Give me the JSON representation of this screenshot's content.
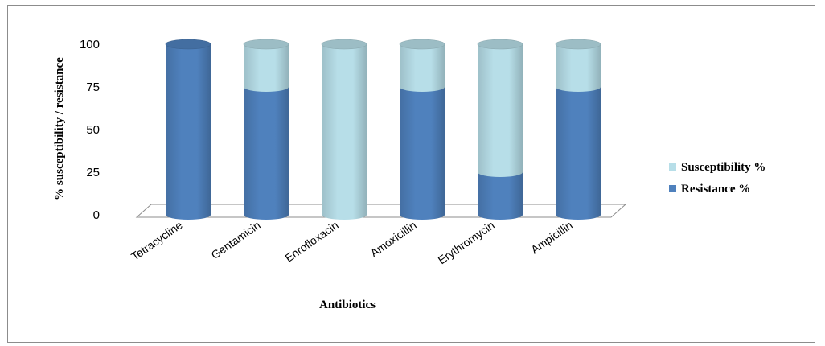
{
  "chart_data": {
    "type": "bar",
    "stacked": true,
    "three_d": true,
    "categories": [
      "Tetracycline",
      "Gentamicin",
      "Enrofloxacin",
      "Amoxicillin",
      "Erythromycin",
      "Ampicillin"
    ],
    "series": [
      {
        "name": "Resistance %",
        "values": [
          100,
          75,
          0,
          75,
          25,
          75
        ],
        "color": "#4f81bd"
      },
      {
        "name": "Susceptibility %",
        "values": [
          0,
          25,
          100,
          25,
          75,
          25
        ],
        "color": "#b7dee8"
      }
    ],
    "xlabel": "Antibiotics",
    "ylabel": "% susceptibility / resistance",
    "yticks": [
      0,
      25,
      50,
      75,
      100
    ],
    "ylim": [
      0,
      100
    ],
    "grid": false,
    "legend_position": "right",
    "legend_order": [
      "Susceptibility %",
      "Resistance %"
    ]
  }
}
